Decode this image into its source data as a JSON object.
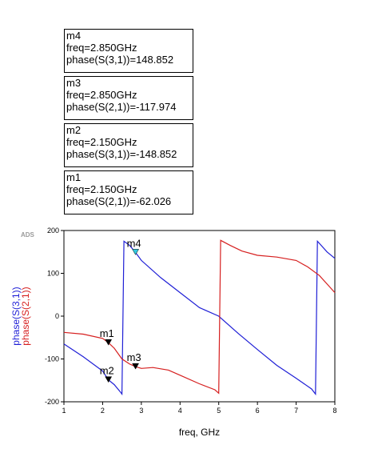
{
  "marker_boxes": [
    {
      "lines": [
        "m4",
        "freq=2.850GHz",
        "phase(S(3,1))=148.852"
      ]
    },
    {
      "lines": [
        "m3",
        "freq=2.850GHz",
        "phase(S(2,1))=-117.974"
      ]
    },
    {
      "lines": [
        "m2",
        "freq=2.150GHz",
        "phase(S(3,1))=-148.852"
      ]
    },
    {
      "lines": [
        "m1",
        "freq=2.150GHz",
        "phase(S(2,1))=-62.026"
      ]
    }
  ],
  "watermark": "ADS",
  "chart_data": {
    "type": "line",
    "title": "",
    "xlabel": "freq, GHz",
    "ylabel_parts": [
      "phase(S(3,1))",
      "phase(S(2,1))"
    ],
    "xlim": [
      1,
      8
    ],
    "ylim": [
      -200,
      200
    ],
    "xticks": [
      1,
      2,
      3,
      4,
      5,
      6,
      7,
      8
    ],
    "yticks": [
      -200,
      -100,
      0,
      100,
      200
    ],
    "grid": false,
    "series": [
      {
        "name": "phase(S(3,1))",
        "color": "#1f1fd6",
        "points": [
          [
            1.0,
            -65
          ],
          [
            1.5,
            -95
          ],
          [
            2.0,
            -128
          ],
          [
            2.15,
            -148.852
          ],
          [
            2.3,
            -160
          ],
          [
            2.45,
            -176
          ],
          [
            2.5,
            -182
          ],
          [
            2.55,
            175
          ],
          [
            2.7,
            165
          ],
          [
            2.85,
            148.852
          ],
          [
            3.0,
            130
          ],
          [
            3.5,
            90
          ],
          [
            4.0,
            55
          ],
          [
            4.5,
            20
          ],
          [
            5.0,
            0
          ],
          [
            5.5,
            -40
          ],
          [
            6.0,
            -78
          ],
          [
            6.5,
            -115
          ],
          [
            7.0,
            -145
          ],
          [
            7.4,
            -170
          ],
          [
            7.5,
            -182
          ],
          [
            7.55,
            175
          ],
          [
            7.8,
            150
          ],
          [
            8.0,
            135
          ]
        ]
      },
      {
        "name": "phase(S(2,1))",
        "color": "#d61f1f",
        "points": [
          [
            1.0,
            -38
          ],
          [
            1.5,
            -42
          ],
          [
            2.0,
            -52
          ],
          [
            2.15,
            -62.026
          ],
          [
            2.3,
            -75
          ],
          [
            2.5,
            -100
          ],
          [
            2.7,
            -112
          ],
          [
            2.85,
            -117.974
          ],
          [
            3.0,
            -122
          ],
          [
            3.3,
            -120
          ],
          [
            3.7,
            -126
          ],
          [
            4.0,
            -138
          ],
          [
            4.5,
            -158
          ],
          [
            4.9,
            -172
          ],
          [
            5.0,
            -180
          ],
          [
            5.05,
            177
          ],
          [
            5.3,
            165
          ],
          [
            5.6,
            152
          ],
          [
            6.0,
            142
          ],
          [
            6.5,
            138
          ],
          [
            7.0,
            130
          ],
          [
            7.3,
            115
          ],
          [
            7.6,
            95
          ],
          [
            7.8,
            75
          ],
          [
            8.0,
            55
          ]
        ]
      }
    ],
    "markers": [
      {
        "label": "m1",
        "series": 1,
        "x": 2.15,
        "y": -62.026,
        "color": "#000000"
      },
      {
        "label": "m2",
        "series": 0,
        "x": 2.15,
        "y": -148.852,
        "color": "#000000"
      },
      {
        "label": "m3",
        "series": 1,
        "x": 2.85,
        "y": -117.974,
        "color": "#000000"
      },
      {
        "label": "m4",
        "series": 0,
        "x": 2.85,
        "y": 148.852,
        "color": "#33c8e0"
      }
    ]
  }
}
